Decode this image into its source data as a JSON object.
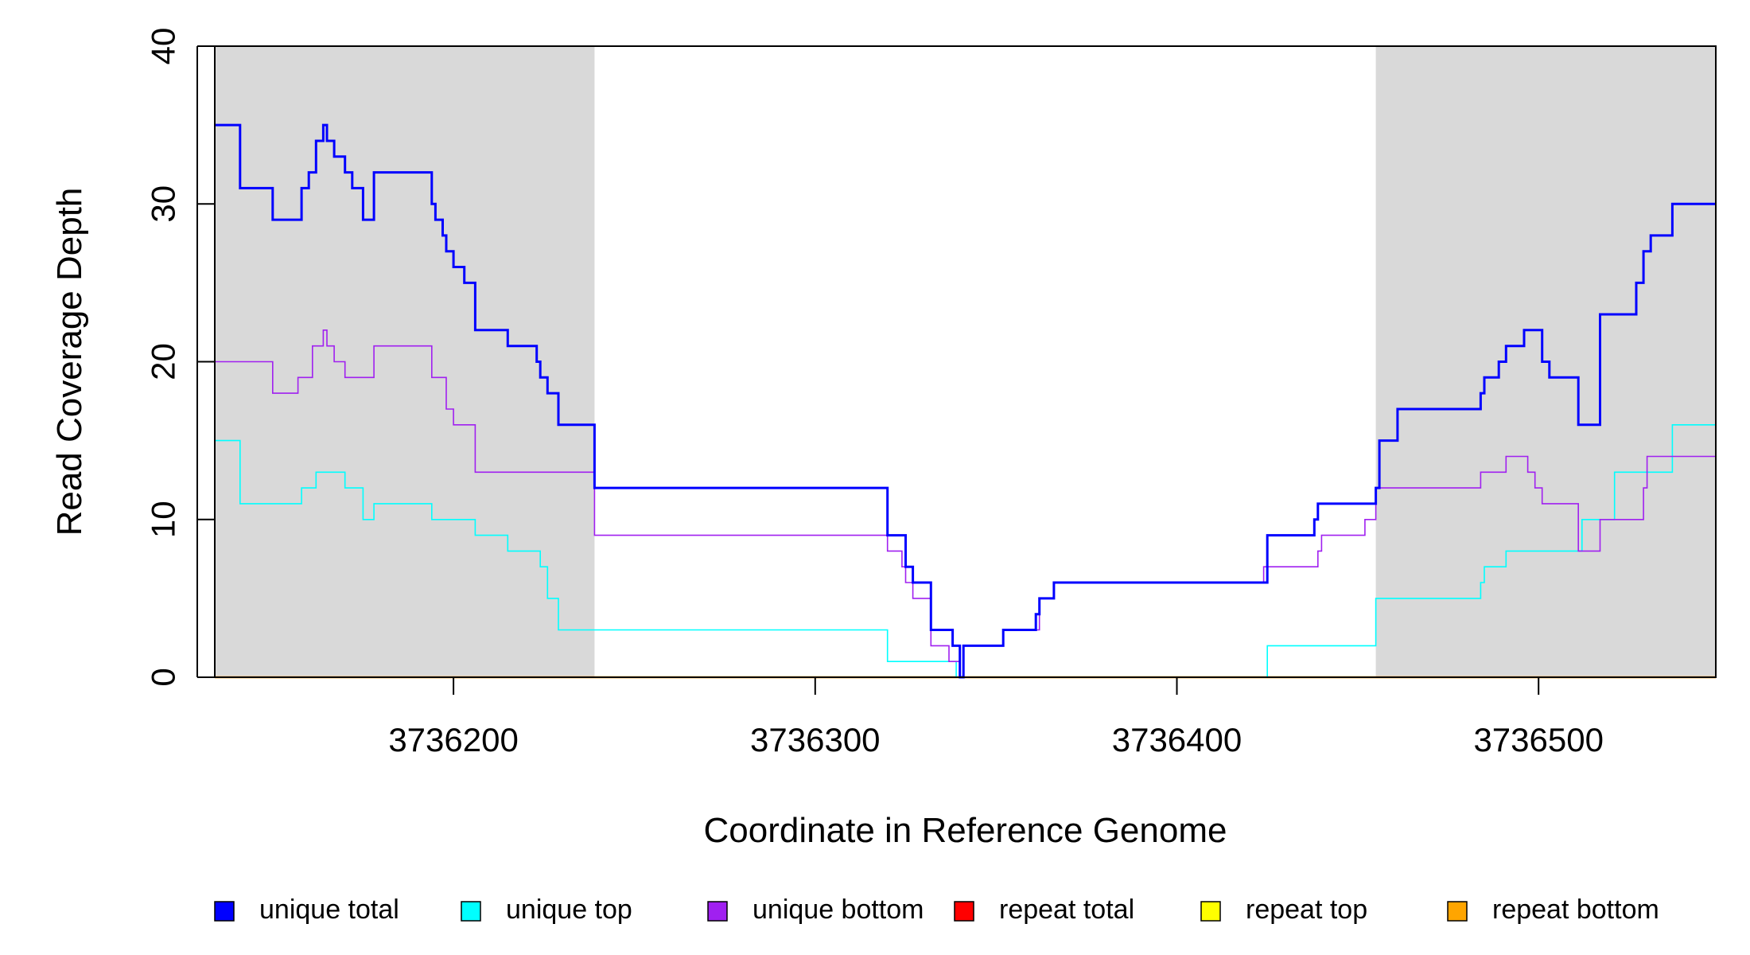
{
  "chart_data": {
    "type": "line",
    "title": "",
    "xlabel": "Coordinate in Reference Genome",
    "ylabel": "Read Coverage Depth",
    "xlim": [
      3736134,
      3736549
    ],
    "ylim": [
      0,
      40
    ],
    "x_ticks": [
      3736200,
      3736300,
      3736400,
      3736500
    ],
    "x_tick_labels": [
      "3736200",
      "3736300",
      "3736400",
      "3736500"
    ],
    "y_ticks": [
      0,
      10,
      20,
      30,
      40
    ],
    "y_tick_labels": [
      "0",
      "10",
      "20",
      "30",
      "40"
    ],
    "shaded_regions": [
      [
        3736134,
        3736239
      ],
      [
        3736455,
        3736549
      ]
    ],
    "series": [
      {
        "name": "unique total",
        "color": "#0000FF",
        "x": [
          3736134,
          3736141,
          3736150,
          3736158,
          3736160,
          3736162,
          3736164,
          3736165,
          3736166,
          3736167,
          3736170,
          3736172,
          3736173,
          3736175,
          3736178,
          3736186,
          3736194,
          3736195,
          3736197,
          3736198,
          3736200,
          3736203,
          3736206,
          3736209,
          3736215,
          3736223,
          3736224,
          3736226,
          3736229,
          3736239,
          3736320,
          3736325,
          3736327,
          3736332,
          3736338,
          3736340,
          3736341,
          3736342,
          3736352,
          3736361,
          3736362,
          3736366,
          3736424,
          3736425,
          3736438,
          3736439,
          3736453,
          3736455,
          3736456,
          3736461,
          3736484,
          3736485,
          3736489,
          3736491,
          3736496,
          3736501,
          3736503,
          3736511,
          3736517,
          3736527,
          3736529,
          3736531,
          3736537,
          3736549
        ],
        "values": [
          35,
          31,
          29,
          31,
          32,
          34,
          35,
          34,
          34,
          33,
          32,
          31,
          31,
          29,
          32,
          32,
          30,
          29,
          28,
          27,
          26,
          25,
          22,
          22,
          21,
          20,
          19,
          18,
          16,
          12,
          9,
          7,
          6,
          3,
          2,
          0,
          2,
          2,
          3,
          4,
          5,
          6,
          6,
          9,
          10,
          11,
          11,
          12,
          15,
          17,
          18,
          19,
          20,
          21,
          22,
          20,
          19,
          16,
          23,
          25,
          27,
          28,
          30,
          30
        ]
      },
      {
        "name": "unique top",
        "color": "#00FFFF",
        "x": [
          3736134,
          3736141,
          3736158,
          3736160,
          3736162,
          3736165,
          3736170,
          3736175,
          3736178,
          3736181,
          3736194,
          3736200,
          3736206,
          3736215,
          3736223,
          3736224,
          3736226,
          3736229,
          3736239,
          3736320,
          3736332,
          3736337,
          3736339,
          3736341,
          3736425,
          3736455,
          3736484,
          3736485,
          3736491,
          3736496,
          3736512,
          3736521,
          3736530,
          3736537,
          3736549
        ],
        "values": [
          15,
          11,
          12,
          12,
          13,
          13,
          12,
          10,
          11,
          11,
          10,
          10,
          9,
          8,
          8,
          7,
          5,
          3,
          3,
          1,
          1,
          1,
          0,
          0,
          2,
          5,
          6,
          7,
          8,
          8,
          10,
          13,
          13,
          16,
          16
        ]
      },
      {
        "name": "unique bottom",
        "color": "#A020F0",
        "x": [
          3736134,
          3736150,
          3736157,
          3736161,
          3736162,
          3736164,
          3736165,
          3736166,
          3736167,
          3736170,
          3736172,
          3736178,
          3736194,
          3736198,
          3736200,
          3736206,
          3736239,
          3736320,
          3736324,
          3736325,
          3736327,
          3736332,
          3736337,
          3736340,
          3736341,
          3736342,
          3736352,
          3736362,
          3736366,
          3736424,
          3736439,
          3736440,
          3736452,
          3736455,
          3736459,
          3736484,
          3736491,
          3736497,
          3736499,
          3736501,
          3736503,
          3736511,
          3736517,
          3736529,
          3736530,
          3736549
        ],
        "values": [
          20,
          18,
          19,
          21,
          21,
          22,
          21,
          21,
          20,
          19,
          19,
          21,
          19,
          17,
          16,
          13,
          9,
          8,
          7,
          6,
          5,
          2,
          1,
          0,
          2,
          2,
          3,
          5,
          6,
          7,
          8,
          9,
          10,
          12,
          12,
          13,
          14,
          13,
          12,
          11,
          11,
          8,
          10,
          12,
          14,
          14
        ]
      },
      {
        "name": "repeat total",
        "color": "#FF0000",
        "x": [
          3736134,
          3736549
        ],
        "values": [
          0,
          0
        ]
      },
      {
        "name": "repeat top",
        "color": "#FFFF00",
        "x": [
          3736134,
          3736549
        ],
        "values": [
          0,
          0
        ]
      },
      {
        "name": "repeat bottom",
        "color": "#FFA500",
        "x": [
          3736134,
          3736549
        ],
        "values": [
          0,
          0
        ]
      }
    ],
    "legend": {
      "position": "bottom",
      "entries": [
        {
          "label": "unique total",
          "color": "#0000FF"
        },
        {
          "label": "unique top",
          "color": "#00FFFF"
        },
        {
          "label": "unique bottom",
          "color": "#A020F0"
        },
        {
          "label": "repeat total",
          "color": "#FF0000"
        },
        {
          "label": "repeat top",
          "color": "#FFFF00"
        },
        {
          "label": "repeat bottom",
          "color": "#FFA500"
        }
      ]
    }
  }
}
